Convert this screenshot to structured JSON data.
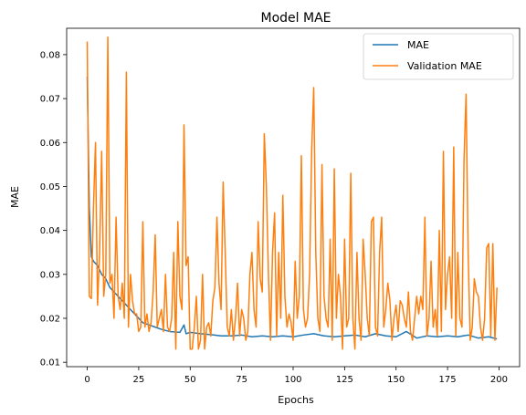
{
  "chart_data": {
    "type": "line",
    "title": "Model MAE",
    "xlabel": "Epochs",
    "ylabel": "MAE",
    "xlim": [
      -10,
      210
    ],
    "ylim": [
      0.009,
      0.086
    ],
    "xticks": [
      0,
      25,
      50,
      75,
      100,
      125,
      150,
      175,
      200
    ],
    "yticks": [
      0.01,
      0.02,
      0.03,
      0.04,
      0.05,
      0.06,
      0.07,
      0.08
    ],
    "ytick_labels": [
      "0.01",
      "0.02",
      "0.03",
      "0.04",
      "0.05",
      "0.06",
      "0.07",
      "0.08"
    ],
    "grid": false,
    "legend": "top-right",
    "series": [
      {
        "name": "MAE",
        "color": "#1f77b4",
        "points": [
          [
            0,
            0.075
          ],
          [
            1,
            0.045
          ],
          [
            2,
            0.034
          ],
          [
            3,
            0.033
          ],
          [
            5,
            0.032
          ],
          [
            7,
            0.03
          ],
          [
            9,
            0.029
          ],
          [
            11,
            0.027
          ],
          [
            13,
            0.026
          ],
          [
            15,
            0.025
          ],
          [
            17,
            0.024
          ],
          [
            19,
            0.023
          ],
          [
            21,
            0.022
          ],
          [
            23,
            0.021
          ],
          [
            25,
            0.02
          ],
          [
            27,
            0.019
          ],
          [
            30,
            0.0185
          ],
          [
            33,
            0.018
          ],
          [
            36,
            0.0175
          ],
          [
            40,
            0.017
          ],
          [
            45,
            0.0168
          ],
          [
            47,
            0.0185
          ],
          [
            48,
            0.0165
          ],
          [
            50,
            0.0168
          ],
          [
            55,
            0.0165
          ],
          [
            60,
            0.0163
          ],
          [
            65,
            0.016
          ],
          [
            70,
            0.016
          ],
          [
            75,
            0.0162
          ],
          [
            80,
            0.0158
          ],
          [
            85,
            0.016
          ],
          [
            90,
            0.0158
          ],
          [
            95,
            0.016
          ],
          [
            100,
            0.0158
          ],
          [
            105,
            0.0162
          ],
          [
            110,
            0.0165
          ],
          [
            115,
            0.016
          ],
          [
            120,
            0.0158
          ],
          [
            125,
            0.016
          ],
          [
            130,
            0.0162
          ],
          [
            135,
            0.0158
          ],
          [
            140,
            0.0165
          ],
          [
            145,
            0.016
          ],
          [
            150,
            0.0158
          ],
          [
            155,
            0.017
          ],
          [
            160,
            0.0155
          ],
          [
            165,
            0.016
          ],
          [
            170,
            0.0158
          ],
          [
            175,
            0.016
          ],
          [
            180,
            0.0158
          ],
          [
            185,
            0.0162
          ],
          [
            190,
            0.0155
          ],
          [
            195,
            0.0158
          ],
          [
            199,
            0.0153
          ]
        ]
      },
      {
        "name": "Validation MAE",
        "color": "#ff7f0e",
        "points": [
          [
            0,
            0.083
          ],
          [
            1,
            0.025
          ],
          [
            2,
            0.0245
          ],
          [
            3,
            0.045
          ],
          [
            4,
            0.06
          ],
          [
            5,
            0.023
          ],
          [
            6,
            0.035
          ],
          [
            7,
            0.058
          ],
          [
            8,
            0.025
          ],
          [
            9,
            0.03
          ],
          [
            10,
            0.084
          ],
          [
            11,
            0.028
          ],
          [
            12,
            0.03
          ],
          [
            13,
            0.02
          ],
          [
            14,
            0.043
          ],
          [
            15,
            0.025
          ],
          [
            16,
            0.022
          ],
          [
            17,
            0.028
          ],
          [
            18,
            0.02
          ],
          [
            19,
            0.076
          ],
          [
            20,
            0.018
          ],
          [
            21,
            0.03
          ],
          [
            22,
            0.024
          ],
          [
            23,
            0.021
          ],
          [
            24,
            0.021
          ],
          [
            25,
            0.017
          ],
          [
            26,
            0.018
          ],
          [
            27,
            0.042
          ],
          [
            28,
            0.018
          ],
          [
            29,
            0.021
          ],
          [
            30,
            0.017
          ],
          [
            31,
            0.019
          ],
          [
            32,
            0.026
          ],
          [
            33,
            0.039
          ],
          [
            34,
            0.018
          ],
          [
            35,
            0.02
          ],
          [
            36,
            0.022
          ],
          [
            37,
            0.017
          ],
          [
            38,
            0.03
          ],
          [
            39,
            0.018
          ],
          [
            40,
            0.017
          ],
          [
            41,
            0.02
          ],
          [
            42,
            0.035
          ],
          [
            43,
            0.013
          ],
          [
            44,
            0.042
          ],
          [
            45,
            0.025
          ],
          [
            46,
            0.022
          ],
          [
            47,
            0.064
          ],
          [
            48,
            0.032
          ],
          [
            49,
            0.034
          ],
          [
            50,
            0.013
          ],
          [
            51,
            0.013
          ],
          [
            52,
            0.018
          ],
          [
            53,
            0.025
          ],
          [
            54,
            0.013
          ],
          [
            55,
            0.015
          ],
          [
            56,
            0.03
          ],
          [
            57,
            0.013
          ],
          [
            58,
            0.018
          ],
          [
            59,
            0.019
          ],
          [
            60,
            0.016
          ],
          [
            61,
            0.024
          ],
          [
            62,
            0.027
          ],
          [
            63,
            0.043
          ],
          [
            64,
            0.028
          ],
          [
            65,
            0.022
          ],
          [
            66,
            0.051
          ],
          [
            67,
            0.035
          ],
          [
            68,
            0.018
          ],
          [
            69,
            0.016
          ],
          [
            70,
            0.022
          ],
          [
            71,
            0.015
          ],
          [
            72,
            0.02
          ],
          [
            73,
            0.028
          ],
          [
            74,
            0.016
          ],
          [
            75,
            0.022
          ],
          [
            76,
            0.02
          ],
          [
            77,
            0.015
          ],
          [
            78,
            0.017
          ],
          [
            79,
            0.03
          ],
          [
            80,
            0.035
          ],
          [
            81,
            0.022
          ],
          [
            82,
            0.018
          ],
          [
            83,
            0.042
          ],
          [
            84,
            0.029
          ],
          [
            85,
            0.026
          ],
          [
            86,
            0.062
          ],
          [
            87,
            0.05
          ],
          [
            88,
            0.03
          ],
          [
            89,
            0.015
          ],
          [
            90,
            0.035
          ],
          [
            91,
            0.044
          ],
          [
            92,
            0.016
          ],
          [
            93,
            0.035
          ],
          [
            94,
            0.02
          ],
          [
            95,
            0.048
          ],
          [
            96,
            0.025
          ],
          [
            97,
            0.018
          ],
          [
            98,
            0.021
          ],
          [
            99,
            0.019
          ],
          [
            100,
            0.015
          ],
          [
            101,
            0.033
          ],
          [
            102,
            0.02
          ],
          [
            103,
            0.025
          ],
          [
            104,
            0.057
          ],
          [
            105,
            0.022
          ],
          [
            106,
            0.018
          ],
          [
            107,
            0.02
          ],
          [
            108,
            0.03
          ],
          [
            109,
            0.058
          ],
          [
            110,
            0.0725
          ],
          [
            111,
            0.035
          ],
          [
            112,
            0.02
          ],
          [
            113,
            0.017
          ],
          [
            114,
            0.055
          ],
          [
            115,
            0.025
          ],
          [
            116,
            0.02
          ],
          [
            117,
            0.018
          ],
          [
            118,
            0.038
          ],
          [
            119,
            0.015
          ],
          [
            120,
            0.054
          ],
          [
            121,
            0.02
          ],
          [
            122,
            0.03
          ],
          [
            123,
            0.025
          ],
          [
            124,
            0.013
          ],
          [
            125,
            0.038
          ],
          [
            126,
            0.018
          ],
          [
            127,
            0.02
          ],
          [
            128,
            0.053
          ],
          [
            129,
            0.02
          ],
          [
            130,
            0.013
          ],
          [
            131,
            0.035
          ],
          [
            132,
            0.02
          ],
          [
            133,
            0.015
          ],
          [
            134,
            0.038
          ],
          [
            135,
            0.03
          ],
          [
            136,
            0.02
          ],
          [
            137,
            0.016
          ],
          [
            138,
            0.042
          ],
          [
            139,
            0.043
          ],
          [
            140,
            0.018
          ],
          [
            141,
            0.016
          ],
          [
            142,
            0.035
          ],
          [
            143,
            0.043
          ],
          [
            144,
            0.018
          ],
          [
            145,
            0.022
          ],
          [
            146,
            0.028
          ],
          [
            147,
            0.024
          ],
          [
            148,
            0.015
          ],
          [
            149,
            0.02
          ],
          [
            150,
            0.023
          ],
          [
            151,
            0.017
          ],
          [
            152,
            0.024
          ],
          [
            153,
            0.023
          ],
          [
            154,
            0.02
          ],
          [
            155,
            0.018
          ],
          [
            156,
            0.026
          ],
          [
            157,
            0.017
          ],
          [
            158,
            0.015
          ],
          [
            159,
            0.02
          ],
          [
            160,
            0.025
          ],
          [
            161,
            0.021
          ],
          [
            162,
            0.025
          ],
          [
            163,
            0.022
          ],
          [
            164,
            0.043
          ],
          [
            165,
            0.016
          ],
          [
            166,
            0.02
          ],
          [
            167,
            0.033
          ],
          [
            168,
            0.018
          ],
          [
            169,
            0.022
          ],
          [
            170,
            0.016
          ],
          [
            171,
            0.04
          ],
          [
            172,
            0.017
          ],
          [
            173,
            0.058
          ],
          [
            174,
            0.022
          ],
          [
            175,
            0.03
          ],
          [
            176,
            0.034
          ],
          [
            177,
            0.02
          ],
          [
            178,
            0.059
          ],
          [
            179,
            0.016
          ],
          [
            180,
            0.035
          ],
          [
            181,
            0.02
          ],
          [
            182,
            0.018
          ],
          [
            183,
            0.056
          ],
          [
            184,
            0.071
          ],
          [
            185,
            0.035
          ],
          [
            186,
            0.015
          ],
          [
            187,
            0.018
          ],
          [
            188,
            0.029
          ],
          [
            189,
            0.026
          ],
          [
            190,
            0.025
          ],
          [
            191,
            0.018
          ],
          [
            192,
            0.015
          ],
          [
            193,
            0.02
          ],
          [
            194,
            0.036
          ],
          [
            195,
            0.037
          ],
          [
            196,
            0.016
          ],
          [
            197,
            0.037
          ],
          [
            198,
            0.015
          ],
          [
            199,
            0.027
          ]
        ]
      }
    ]
  }
}
